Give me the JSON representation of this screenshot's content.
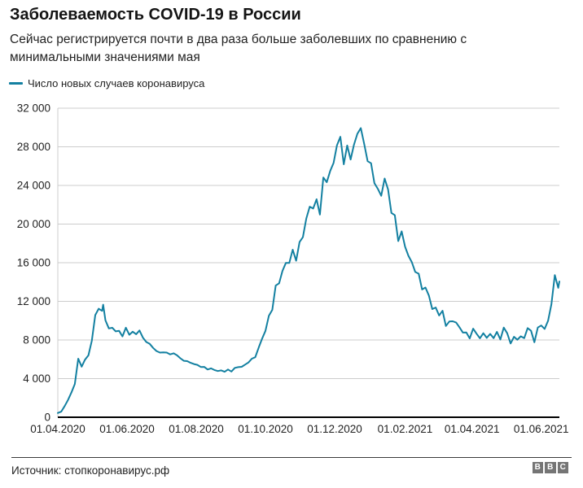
{
  "header": {
    "title": "Заболеваемость COVID-19 в России",
    "subtitle_line1": "Сейчас регистрируется почти в два раза больше заболевших по сравнению с",
    "subtitle_line2": "минимальными значениями мая"
  },
  "legend": {
    "label": "Число новых случаев коронавируса"
  },
  "footer": {
    "source": "Источник: стопкоронавирус.рф",
    "logo_letters": [
      "B",
      "B",
      "C"
    ]
  },
  "colors": {
    "line": "#1380a1",
    "grid": "#cccccc",
    "axis": "#000000",
    "tick_text": "#222222",
    "logo_bg": "#757575"
  },
  "chart_data": {
    "type": "line",
    "title": "Заболеваемость COVID-19 в России",
    "xlabel": "",
    "ylabel": "",
    "grid": "horizontal",
    "legend_position": "top-left",
    "ylim": [
      0,
      32000
    ],
    "yticks": [
      {
        "value": 0,
        "label": "0"
      },
      {
        "value": 4000,
        "label": "4 000"
      },
      {
        "value": 8000,
        "label": "8 000"
      },
      {
        "value": 12000,
        "label": "12 000"
      },
      {
        "value": 16000,
        "label": "16 000"
      },
      {
        "value": 20000,
        "label": "20 000"
      },
      {
        "value": 24000,
        "label": "24 000"
      },
      {
        "value": 28000,
        "label": "28 000"
      },
      {
        "value": 32000,
        "label": "32 000"
      }
    ],
    "xticks": [
      {
        "date": "2020-04-01",
        "label": "01.04.2020"
      },
      {
        "date": "2020-06-01",
        "label": "01.06.2020"
      },
      {
        "date": "2020-08-01",
        "label": "01.08.2020"
      },
      {
        "date": "2020-10-01",
        "label": "01.10.2020"
      },
      {
        "date": "2020-12-01",
        "label": "01.12.2020"
      },
      {
        "date": "2021-02-01",
        "label": "01.02.2021"
      },
      {
        "date": "2021-04-01",
        "label": "01.04.2021"
      },
      {
        "date": "2021-06-01",
        "label": "01.06.2021"
      }
    ],
    "x_range": [
      "2020-04-01",
      "2021-06-17"
    ],
    "series": [
      {
        "name": "Число новых случаев коронавируса",
        "color": "#1380a1",
        "points": [
          [
            "2020-04-01",
            440
          ],
          [
            "2020-04-04",
            582
          ],
          [
            "2020-04-07",
            1154
          ],
          [
            "2020-04-10",
            1786
          ],
          [
            "2020-04-13",
            2558
          ],
          [
            "2020-04-16",
            3448
          ],
          [
            "2020-04-19",
            6060
          ],
          [
            "2020-04-22",
            5236
          ],
          [
            "2020-04-25",
            5966
          ],
          [
            "2020-04-28",
            6411
          ],
          [
            "2020-05-01",
            7933
          ],
          [
            "2020-05-04",
            10581
          ],
          [
            "2020-05-07",
            11231
          ],
          [
            "2020-05-10",
            11012
          ],
          [
            "2020-05-11",
            11656
          ],
          [
            "2020-05-13",
            10028
          ],
          [
            "2020-05-16",
            9200
          ],
          [
            "2020-05-19",
            9263
          ],
          [
            "2020-05-22",
            8894
          ],
          [
            "2020-05-25",
            8946
          ],
          [
            "2020-05-28",
            8371
          ],
          [
            "2020-05-31",
            9268
          ],
          [
            "2020-06-03",
            8536
          ],
          [
            "2020-06-06",
            8855
          ],
          [
            "2020-06-09",
            8595
          ],
          [
            "2020-06-12",
            8987
          ],
          [
            "2020-06-15",
            8246
          ],
          [
            "2020-06-18",
            7790
          ],
          [
            "2020-06-21",
            7600
          ],
          [
            "2020-06-24",
            7176
          ],
          [
            "2020-06-27",
            6852
          ],
          [
            "2020-06-30",
            6693
          ],
          [
            "2020-07-03",
            6718
          ],
          [
            "2020-07-06",
            6696
          ],
          [
            "2020-07-09",
            6509
          ],
          [
            "2020-07-12",
            6615
          ],
          [
            "2020-07-15",
            6422
          ],
          [
            "2020-07-18",
            6109
          ],
          [
            "2020-07-21",
            5842
          ],
          [
            "2020-07-24",
            5811
          ],
          [
            "2020-07-27",
            5635
          ],
          [
            "2020-07-30",
            5509
          ],
          [
            "2020-08-02",
            5427
          ],
          [
            "2020-08-05",
            5204
          ],
          [
            "2020-08-08",
            5212
          ],
          [
            "2020-08-11",
            4945
          ],
          [
            "2020-08-14",
            5065
          ],
          [
            "2020-08-17",
            4892
          ],
          [
            "2020-08-20",
            4785
          ],
          [
            "2020-08-23",
            4852
          ],
          [
            "2020-08-26",
            4711
          ],
          [
            "2020-08-29",
            4941
          ],
          [
            "2020-09-01",
            4729
          ],
          [
            "2020-09-04",
            5110
          ],
          [
            "2020-09-07",
            5185
          ],
          [
            "2020-09-10",
            5218
          ],
          [
            "2020-09-13",
            5449
          ],
          [
            "2020-09-16",
            5670
          ],
          [
            "2020-09-19",
            6065
          ],
          [
            "2020-09-22",
            6215
          ],
          [
            "2020-09-25",
            7212
          ],
          [
            "2020-09-28",
            8135
          ],
          [
            "2020-10-01",
            8945
          ],
          [
            "2020-10-04",
            10499
          ],
          [
            "2020-10-07",
            11115
          ],
          [
            "2020-10-10",
            13634
          ],
          [
            "2020-10-13",
            13868
          ],
          [
            "2020-10-16",
            15150
          ],
          [
            "2020-10-19",
            15982
          ],
          [
            "2020-10-22",
            15971
          ],
          [
            "2020-10-25",
            17347
          ],
          [
            "2020-10-28",
            16202
          ],
          [
            "2020-10-31",
            18140
          ],
          [
            "2020-11-03",
            18648
          ],
          [
            "2020-11-06",
            20582
          ],
          [
            "2020-11-09",
            21798
          ],
          [
            "2020-11-12",
            21608
          ],
          [
            "2020-11-15",
            22572
          ],
          [
            "2020-11-18",
            20985
          ],
          [
            "2020-11-21",
            24822
          ],
          [
            "2020-11-24",
            24326
          ],
          [
            "2020-11-27",
            25487
          ],
          [
            "2020-11-30",
            26338
          ],
          [
            "2020-12-03",
            28145
          ],
          [
            "2020-12-06",
            29039
          ],
          [
            "2020-12-09",
            26190
          ],
          [
            "2020-12-12",
            28137
          ],
          [
            "2020-12-15",
            26689
          ],
          [
            "2020-12-18",
            28209
          ],
          [
            "2020-12-21",
            29350
          ],
          [
            "2020-12-24",
            29935
          ],
          [
            "2020-12-27",
            28284
          ],
          [
            "2020-12-30",
            26513
          ],
          [
            "2021-01-02",
            26301
          ],
          [
            "2021-01-05",
            24246
          ],
          [
            "2021-01-08",
            23652
          ],
          [
            "2021-01-11",
            22934
          ],
          [
            "2021-01-14",
            24715
          ],
          [
            "2021-01-17",
            23586
          ],
          [
            "2021-01-20",
            21152
          ],
          [
            "2021-01-23",
            20921
          ],
          [
            "2021-01-26",
            18241
          ],
          [
            "2021-01-29",
            19238
          ],
          [
            "2021-02-01",
            17648
          ],
          [
            "2021-02-04",
            16714
          ],
          [
            "2021-02-07",
            16048
          ],
          [
            "2021-02-10",
            15038
          ],
          [
            "2021-02-13",
            14861
          ],
          [
            "2021-02-16",
            13233
          ],
          [
            "2021-02-19",
            13433
          ],
          [
            "2021-02-22",
            12604
          ],
          [
            "2021-02-25",
            11198
          ],
          [
            "2021-02-28",
            11359
          ],
          [
            "2021-03-03",
            10535
          ],
          [
            "2021-03-06",
            11022
          ],
          [
            "2021-03-09",
            9445
          ],
          [
            "2021-03-12",
            9908
          ],
          [
            "2021-03-15",
            9937
          ],
          [
            "2021-03-18",
            9803
          ],
          [
            "2021-03-21",
            9299
          ],
          [
            "2021-03-24",
            8769
          ],
          [
            "2021-03-27",
            8783
          ],
          [
            "2021-03-30",
            8162
          ],
          [
            "2021-04-02",
            9169
          ],
          [
            "2021-04-05",
            8646
          ],
          [
            "2021-04-08",
            8173
          ],
          [
            "2021-04-11",
            8702
          ],
          [
            "2021-04-14",
            8217
          ],
          [
            "2021-04-17",
            8632
          ],
          [
            "2021-04-20",
            8182
          ],
          [
            "2021-04-23",
            8840
          ],
          [
            "2021-04-26",
            8053
          ],
          [
            "2021-04-29",
            9284
          ],
          [
            "2021-05-02",
            8697
          ],
          [
            "2021-05-05",
            7639
          ],
          [
            "2021-05-08",
            8329
          ],
          [
            "2021-05-11",
            8026
          ],
          [
            "2021-05-14",
            8380
          ],
          [
            "2021-05-17",
            8183
          ],
          [
            "2021-05-20",
            9232
          ],
          [
            "2021-05-23",
            8951
          ],
          [
            "2021-05-26",
            7762
          ],
          [
            "2021-05-29",
            9289
          ],
          [
            "2021-06-01",
            9500
          ],
          [
            "2021-06-04",
            9145
          ],
          [
            "2021-06-07",
            9984
          ],
          [
            "2021-06-10",
            11699
          ],
          [
            "2021-06-13",
            14723
          ],
          [
            "2021-06-16",
            13397
          ],
          [
            "2021-06-17",
            14057
          ]
        ]
      }
    ]
  }
}
